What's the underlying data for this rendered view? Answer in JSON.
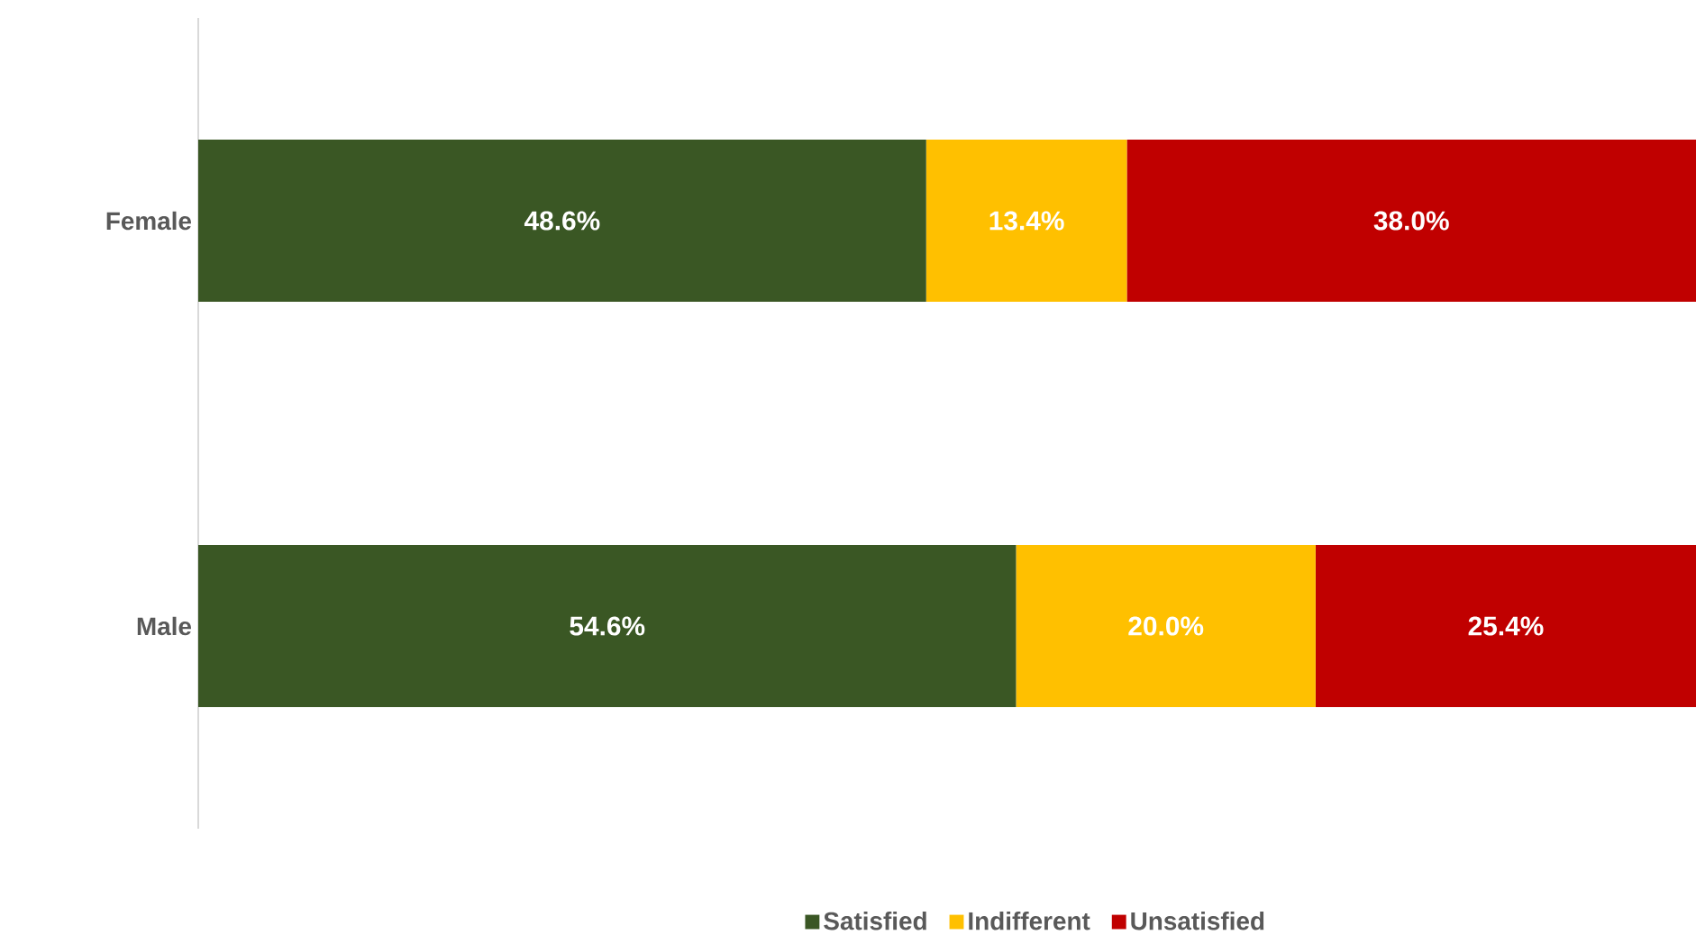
{
  "chart_data": {
    "type": "bar",
    "orientation": "horizontal",
    "stacked": true,
    "categories": [
      "Female",
      "Male"
    ],
    "tick_labels": "y",
    "legend": "bottom",
    "series": [
      {
        "name": "Satisfied",
        "color": "#3a5724",
        "values": [
          48.6,
          54.6
        ],
        "value_labels": [
          "48.6%",
          "54.6%"
        ]
      },
      {
        "name": "Indifferent",
        "color": "#ffc000",
        "values": [
          13.4,
          20.0
        ],
        "value_labels": [
          "13.4%",
          "20.0%"
        ]
      },
      {
        "name": "Unsatisfied",
        "color": "#c00000",
        "values": [
          38.0,
          25.4
        ],
        "value_labels": [
          "38.0%",
          "25.4%"
        ]
      }
    ]
  }
}
